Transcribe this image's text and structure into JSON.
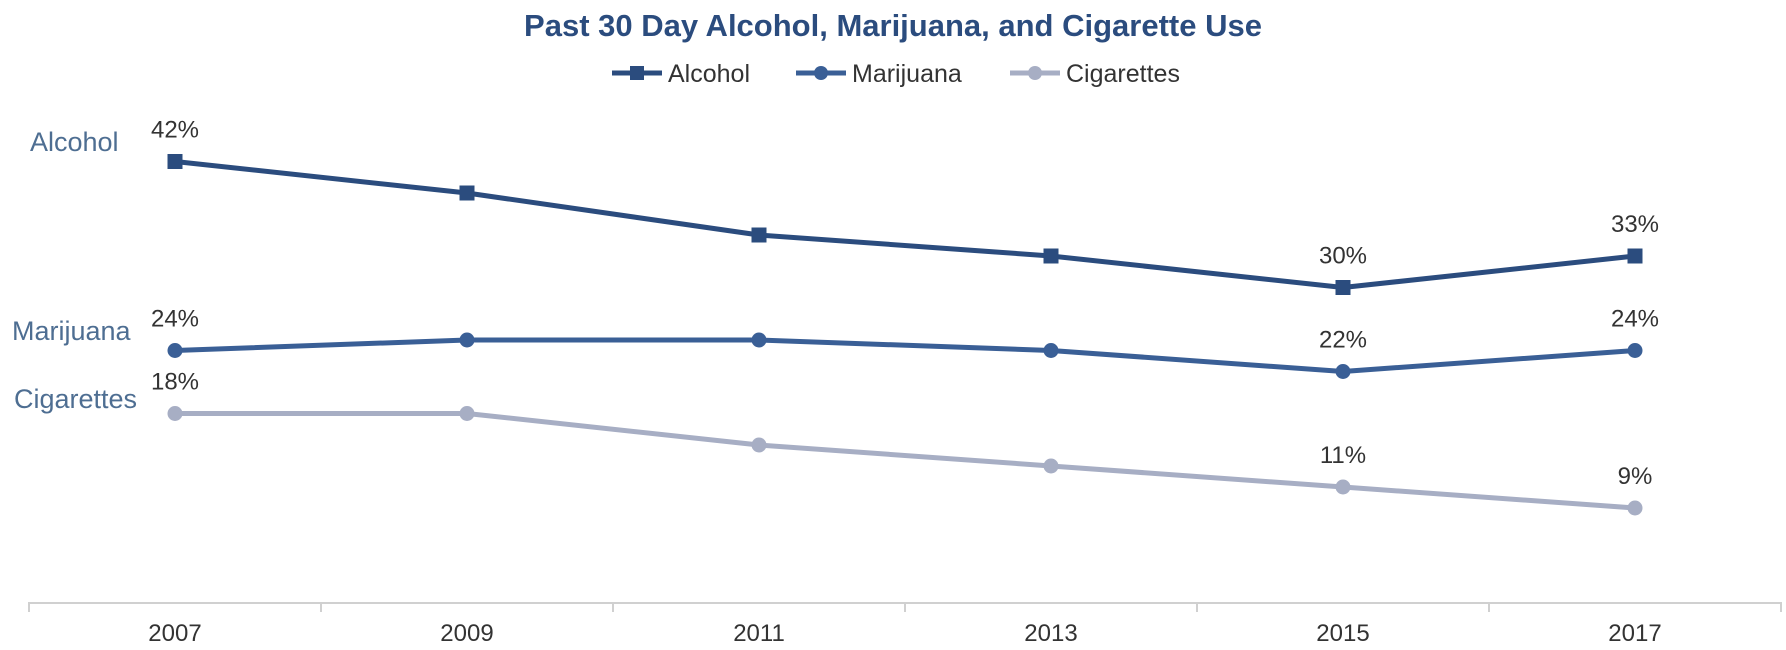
{
  "chart_data": {
    "type": "line",
    "title": "Past 30 Day Alcohol, Marijuana, and Cigarette Use",
    "x": [
      2007,
      2009,
      2011,
      2013,
      2015,
      2017
    ],
    "xticklabels": [
      "2007",
      "2009",
      "2011",
      "2013",
      "2015",
      "2017"
    ],
    "xlabel": "",
    "ylabel": "",
    "ylim": [
      0,
      46
    ],
    "grid": false,
    "legend": "top-center",
    "series": [
      {
        "name": "Alcohol",
        "values": [
          42,
          39,
          35,
          33,
          30,
          33
        ],
        "color": "#2B4C7E",
        "marker": "square",
        "labels": [
          "42%",
          "",
          "",
          "",
          "30%",
          "33%"
        ],
        "side_label": "Alcohol"
      },
      {
        "name": "Marijuana",
        "values": [
          24,
          25,
          25,
          24,
          22,
          24
        ],
        "color": "#3A5F96",
        "marker": "circle",
        "labels": [
          "24%",
          "",
          "",
          "",
          "22%",
          "24%"
        ],
        "side_label": "Marijuana"
      },
      {
        "name": "Cigarettes",
        "values": [
          18,
          18,
          15,
          13,
          11,
          9
        ],
        "color": "#A7AEC4",
        "marker": "circle",
        "labels": [
          "18%",
          "",
          "",
          "",
          "11%",
          "9%"
        ],
        "side_label": "Cigarettes"
      }
    ]
  }
}
